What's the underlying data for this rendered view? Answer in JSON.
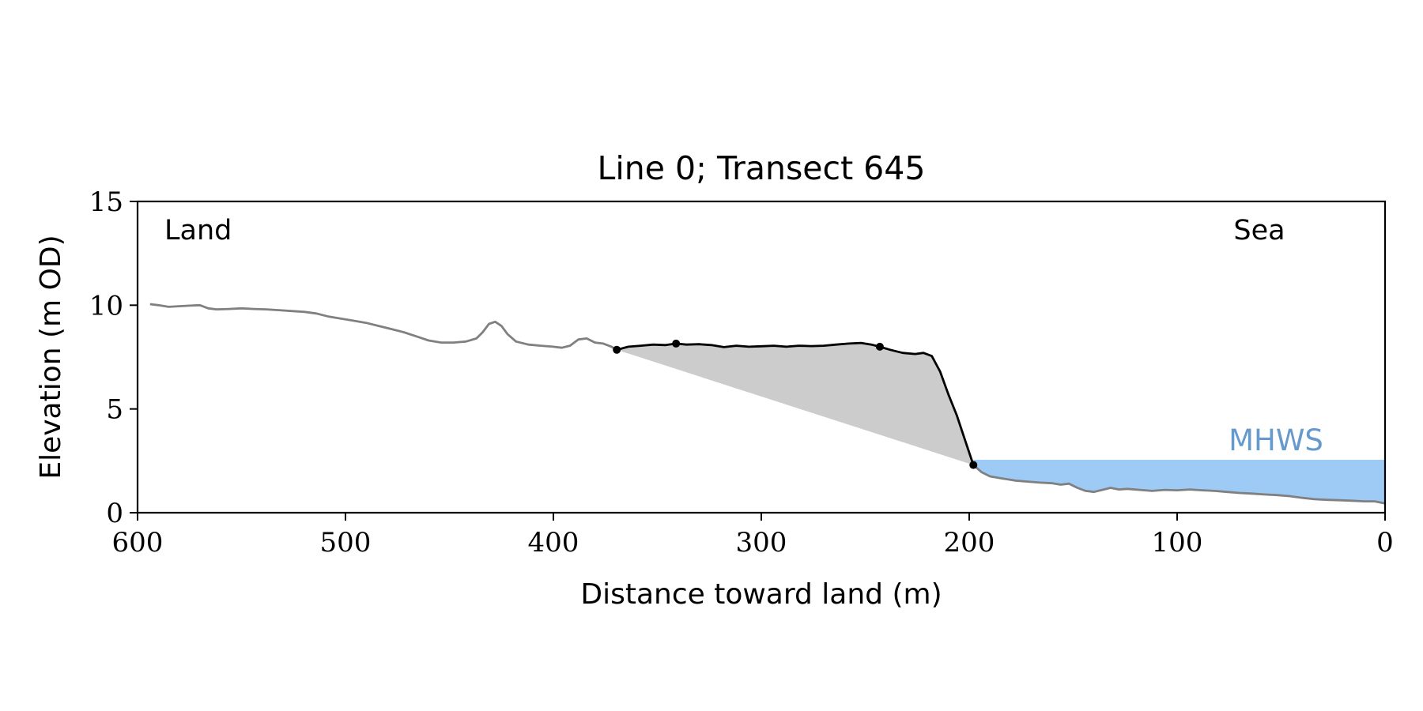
{
  "chart_data": {
    "type": "line",
    "title": "Line 0; Transect 645",
    "xlabel": "Distance toward land (m)",
    "ylabel": "Elevation (m OD)",
    "xlim": [
      600,
      0
    ],
    "ylim": [
      0,
      15
    ],
    "x_reversed": true,
    "grid": false,
    "x_ticks": [
      600,
      500,
      400,
      300,
      200,
      100,
      0
    ],
    "y_ticks": [
      0,
      5,
      10,
      15
    ],
    "annotations": {
      "land": "Land",
      "sea": "Sea",
      "mhws": "MHWS"
    },
    "mhws_level": 2.55,
    "colors": {
      "profile": "#808080",
      "cliff": "#000000",
      "fill": "#cccccc",
      "water": "#9ecbf5",
      "mhws_text": "#6699cc"
    },
    "profile": [
      [
        594,
        10.05
      ],
      [
        590,
        10.0
      ],
      [
        585,
        9.92
      ],
      [
        580,
        9.95
      ],
      [
        575,
        9.98
      ],
      [
        570,
        10.0
      ],
      [
        566,
        9.85
      ],
      [
        562,
        9.8
      ],
      [
        556,
        9.82
      ],
      [
        550,
        9.85
      ],
      [
        544,
        9.82
      ],
      [
        538,
        9.8
      ],
      [
        532,
        9.76
      ],
      [
        526,
        9.72
      ],
      [
        520,
        9.68
      ],
      [
        514,
        9.6
      ],
      [
        508,
        9.45
      ],
      [
        502,
        9.35
      ],
      [
        496,
        9.25
      ],
      [
        490,
        9.15
      ],
      [
        484,
        9.0
      ],
      [
        478,
        8.85
      ],
      [
        472,
        8.7
      ],
      [
        466,
        8.5
      ],
      [
        460,
        8.3
      ],
      [
        454,
        8.2
      ],
      [
        448,
        8.2
      ],
      [
        442,
        8.25
      ],
      [
        437,
        8.4
      ],
      [
        434,
        8.7
      ],
      [
        431,
        9.1
      ],
      [
        428,
        9.2
      ],
      [
        425,
        9.0
      ],
      [
        422,
        8.6
      ],
      [
        418,
        8.25
      ],
      [
        412,
        8.1
      ],
      [
        406,
        8.05
      ],
      [
        400,
        8.0
      ],
      [
        396,
        7.95
      ],
      [
        392,
        8.05
      ],
      [
        388,
        8.35
      ],
      [
        384,
        8.4
      ],
      [
        380,
        8.2
      ],
      [
        376,
        8.15
      ],
      [
        372,
        8.0
      ],
      [
        369.5,
        7.85
      ]
    ],
    "cliff_top_profile": [
      [
        369.5,
        7.85
      ],
      [
        364,
        8.0
      ],
      [
        358,
        8.05
      ],
      [
        352,
        8.1
      ],
      [
        346,
        8.08
      ],
      [
        341,
        8.15
      ],
      [
        336,
        8.1
      ],
      [
        330,
        8.12
      ],
      [
        324,
        8.08
      ],
      [
        318,
        7.98
      ],
      [
        312,
        8.05
      ],
      [
        306,
        8.0
      ],
      [
        300,
        8.02
      ],
      [
        294,
        8.05
      ],
      [
        288,
        8.0
      ],
      [
        282,
        8.05
      ],
      [
        276,
        8.03
      ],
      [
        270,
        8.05
      ],
      [
        264,
        8.1
      ],
      [
        258,
        8.15
      ],
      [
        252,
        8.18
      ],
      [
        247,
        8.1
      ],
      [
        243,
        8.0
      ],
      [
        238,
        7.85
      ],
      [
        232,
        7.7
      ],
      [
        226,
        7.65
      ],
      [
        222,
        7.7
      ],
      [
        218,
        7.55
      ],
      [
        214,
        6.8
      ],
      [
        210,
        5.7
      ],
      [
        206,
        4.7
      ],
      [
        202,
        3.5
      ],
      [
        199,
        2.6
      ],
      [
        198,
        2.3
      ]
    ],
    "beach_profile": [
      [
        198,
        2.3
      ],
      [
        194,
        1.95
      ],
      [
        190,
        1.75
      ],
      [
        184,
        1.65
      ],
      [
        178,
        1.55
      ],
      [
        172,
        1.5
      ],
      [
        166,
        1.45
      ],
      [
        160,
        1.42
      ],
      [
        156,
        1.35
      ],
      [
        152,
        1.4
      ],
      [
        148,
        1.2
      ],
      [
        144,
        1.05
      ],
      [
        140,
        1.0
      ],
      [
        136,
        1.1
      ],
      [
        132,
        1.2
      ],
      [
        128,
        1.12
      ],
      [
        124,
        1.15
      ],
      [
        118,
        1.1
      ],
      [
        112,
        1.05
      ],
      [
        106,
        1.1
      ],
      [
        100,
        1.08
      ],
      [
        94,
        1.12
      ],
      [
        88,
        1.08
      ],
      [
        82,
        1.05
      ],
      [
        76,
        1.0
      ],
      [
        70,
        0.95
      ],
      [
        64,
        0.92
      ],
      [
        58,
        0.88
      ],
      [
        52,
        0.85
      ],
      [
        46,
        0.8
      ],
      [
        40,
        0.72
      ],
      [
        34,
        0.65
      ],
      [
        28,
        0.62
      ],
      [
        22,
        0.6
      ],
      [
        16,
        0.58
      ],
      [
        10,
        0.55
      ],
      [
        5,
        0.55
      ],
      [
        0,
        0.45
      ]
    ],
    "points": [
      {
        "x": 369.5,
        "y": 7.85
      },
      {
        "x": 341,
        "y": 8.15
      },
      {
        "x": 243,
        "y": 8.0
      },
      {
        "x": 198,
        "y": 2.3
      }
    ]
  }
}
